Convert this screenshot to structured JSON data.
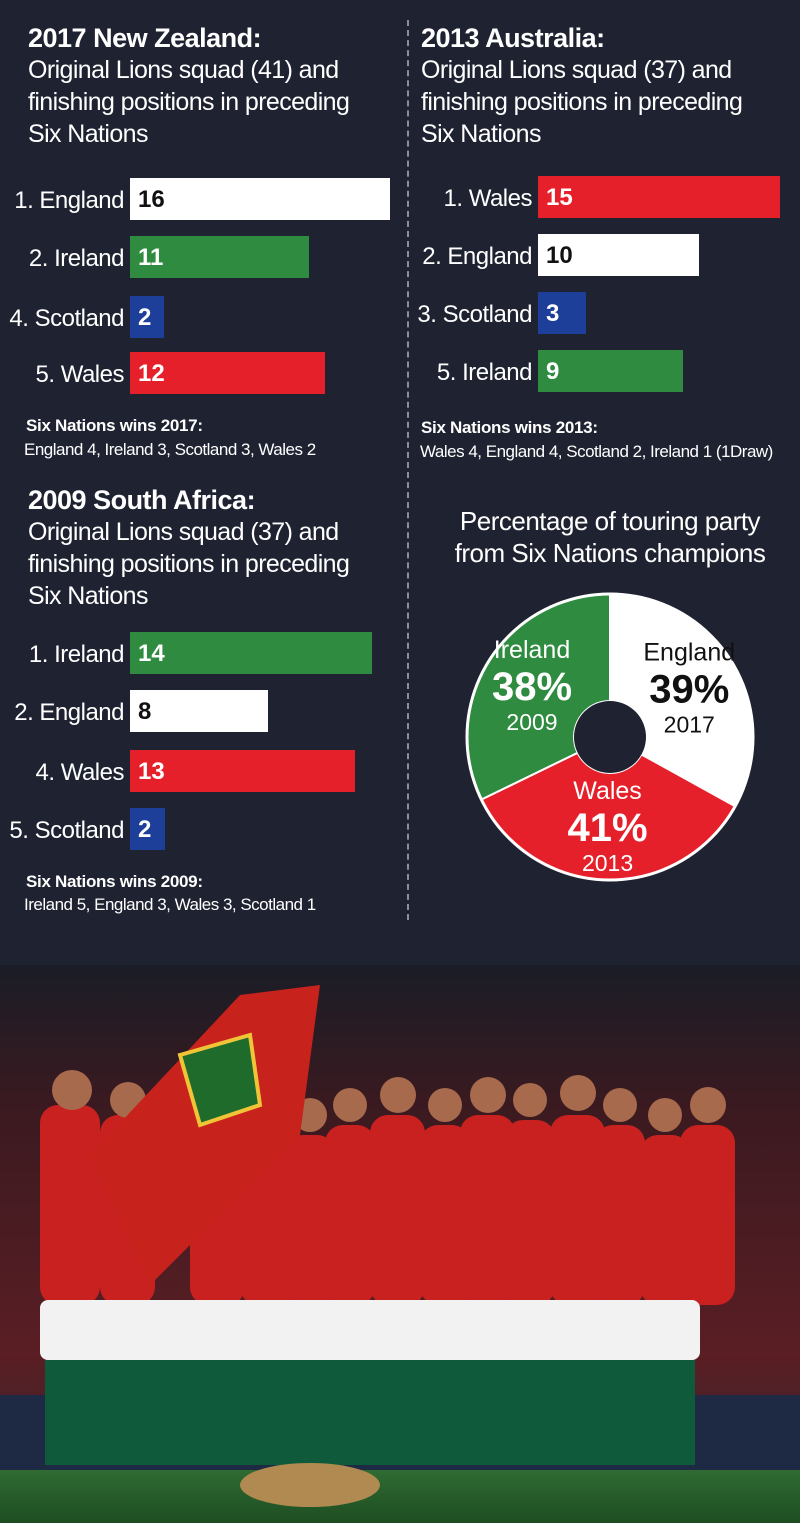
{
  "panels": {
    "nz2017": {
      "title": "2017 New Zealand:",
      "subtitle": [
        "Original Lions squad (41) and",
        "finishing positions in preceding",
        "Six Nations"
      ],
      "wins_heading": "Six Nations wins 2017:",
      "wins_text": "England 4, Ireland 3, Scotland 3, Wales 2"
    },
    "aus2013": {
      "title": "2013 Australia:",
      "subtitle": [
        "Original Lions squad (37) and",
        "finishing positions in preceding",
        "Six Nations"
      ],
      "wins_heading": "Six Nations wins 2013:",
      "wins_text": "Wales 4, England 4, Scotland 2, Ireland 1 (1Draw)"
    },
    "sa2009": {
      "title": "2009 South Africa:",
      "subtitle": [
        "Original Lions squad (37) and",
        "finishing positions in preceding",
        "Six Nations"
      ],
      "wins_heading": "Six Nations wins 2009:",
      "wins_text": "Ireland 5, England 3, Wales 3, Scotland 1"
    },
    "pie": {
      "title": [
        "Percentage of touring party",
        "from Six Nations champions"
      ]
    }
  },
  "colors": {
    "background": "#1f2231",
    "england": "#ffffff",
    "ireland": "#2e8b3f",
    "scotland": "#1d3f9a",
    "wales": "#e5202a"
  },
  "chart_data": [
    {
      "type": "bar",
      "id": "nz2017",
      "categories": [
        "1. England",
        "2. Ireland",
        "4. Scotland",
        "5. Wales"
      ],
      "values": [
        16,
        11,
        2,
        12
      ],
      "colors": [
        "#ffffff",
        "#2e8b3f",
        "#1d3f9a",
        "#e5202a"
      ]
    },
    {
      "type": "bar",
      "id": "aus2013",
      "categories": [
        "1. Wales",
        "2. England",
        "3. Scotland",
        "5. Ireland"
      ],
      "values": [
        15,
        10,
        3,
        9
      ],
      "colors": [
        "#e5202a",
        "#ffffff",
        "#1d3f9a",
        "#2e8b3f"
      ]
    },
    {
      "type": "bar",
      "id": "sa2009",
      "categories": [
        "1. Ireland",
        "2. England",
        "4. Wales",
        "5. Scotland"
      ],
      "values": [
        14,
        8,
        13,
        2
      ],
      "colors": [
        "#2e8b3f",
        "#ffffff",
        "#e5202a",
        "#1d3f9a"
      ]
    },
    {
      "type": "pie",
      "id": "champions",
      "title": "Percentage of touring party from Six Nations champions",
      "slices": [
        {
          "name": "England",
          "value": 39,
          "label": "39%",
          "year": "2017",
          "color": "#ffffff"
        },
        {
          "name": "Wales",
          "value": 41,
          "label": "41%",
          "year": "2013",
          "color": "#e5202a"
        },
        {
          "name": "Ireland",
          "value": 38,
          "label": "38%",
          "year": "2009",
          "color": "#2e8b3f"
        }
      ]
    }
  ]
}
